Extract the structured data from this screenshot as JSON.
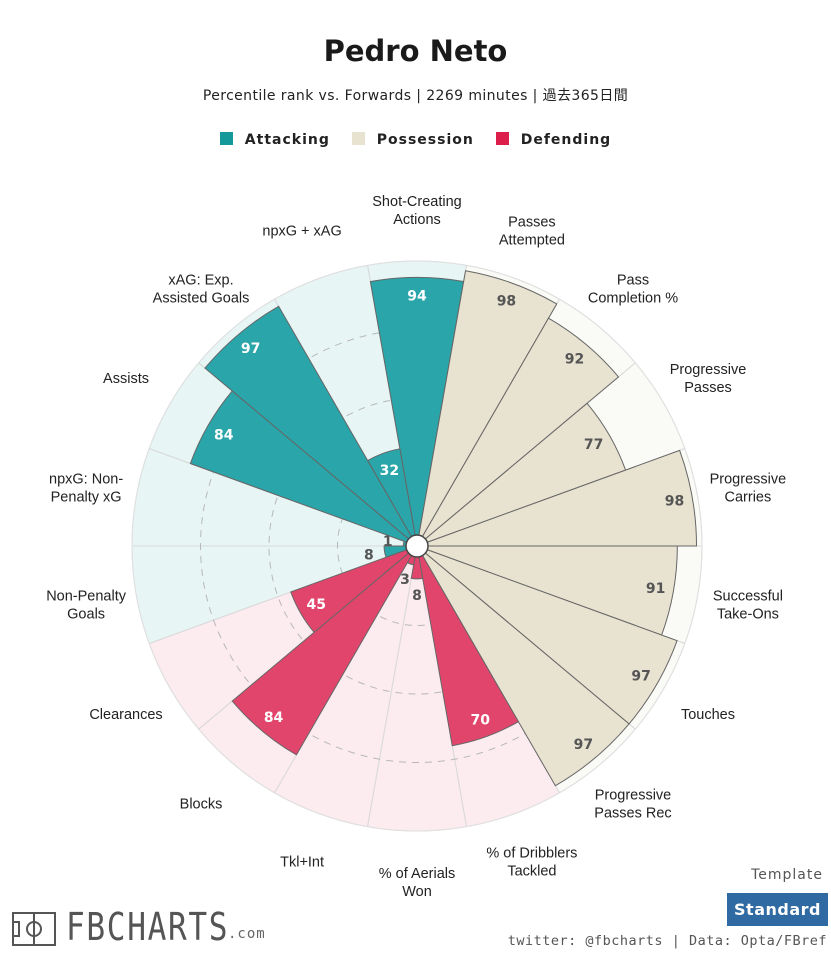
{
  "title": "Pedro Neto",
  "subtitle": "Percentile rank vs. Forwards | 2269 minutes | 過去365日間",
  "legend": [
    {
      "label": "Attacking",
      "color": "#139999"
    },
    {
      "label": "Possession",
      "color": "#e8e2d0"
    },
    {
      "label": "Defending",
      "color": "#dc1e4b"
    }
  ],
  "template": {
    "label": "Template",
    "value": "Standard"
  },
  "credit": "twitter: @fbcharts | Data: Opta/FBref",
  "logo": {
    "text": "FBCHARTS",
    "suffix": ".com"
  },
  "chart_data": {
    "type": "radar-bar",
    "title": "Pedro Neto",
    "range": [
      0,
      100
    ],
    "categories": [
      {
        "label": "Shot-Creating\nActions",
        "value": 94,
        "group": "Attacking"
      },
      {
        "label": "Passes\nAttempted",
        "value": 98,
        "group": "Possession"
      },
      {
        "label": "Pass\nCompletion %",
        "value": 92,
        "group": "Possession"
      },
      {
        "label": "Progressive\nPasses",
        "value": 77,
        "group": "Possession"
      },
      {
        "label": "Progressive\nCarries",
        "value": 98,
        "group": "Possession"
      },
      {
        "label": "Successful\nTake-Ons",
        "value": 91,
        "group": "Possession"
      },
      {
        "label": "Touches",
        "value": 97,
        "group": "Possession"
      },
      {
        "label": "Progressive\nPasses Rec",
        "value": 97,
        "group": "Possession"
      },
      {
        "label": "% of Dribblers\nTackled",
        "value": 70,
        "group": "Defending"
      },
      {
        "label": "% of Aerials\nWon",
        "value": 8,
        "group": "Defending"
      },
      {
        "label": "Tkl+Int",
        "value": 3,
        "group": "Defending"
      },
      {
        "label": "Blocks",
        "value": 84,
        "group": "Defending"
      },
      {
        "label": "Clearances",
        "value": 45,
        "group": "Defending"
      },
      {
        "label": "Non-Penalty\nGoals",
        "value": 8,
        "group": "Attacking"
      },
      {
        "label": "npxG: Non-\nPenalty xG",
        "value": 1,
        "group": "Attacking"
      },
      {
        "label": "Assists",
        "value": 84,
        "group": "Attacking"
      },
      {
        "label": "xAG: Exp.\nAssisted Goals",
        "value": 97,
        "group": "Attacking"
      },
      {
        "label": "npxG + xAG",
        "value": 32,
        "group": "Attacking"
      }
    ],
    "group_colors": {
      "Attacking": {
        "bar": "#2aa5aa",
        "background": "#e7f5f5",
        "value_text": "#ffffff"
      },
      "Possession": {
        "bar": "#e8e2d0",
        "background": "#fafaf7",
        "value_text": "#555555"
      },
      "Defending": {
        "bar": "#e2456c",
        "background": "#fcebef",
        "value_text": "#ffffff"
      }
    }
  }
}
